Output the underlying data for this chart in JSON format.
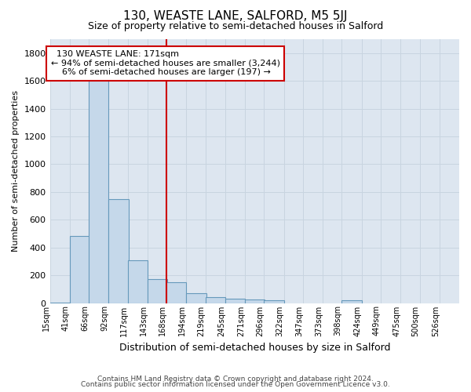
{
  "title": "130, WEASTE LANE, SALFORD, M5 5JJ",
  "subtitle": "Size of property relative to semi-detached houses in Salford",
  "xlabel": "Distribution of semi-detached houses by size in Salford",
  "ylabel": "Number of semi-detached properties",
  "property_label": "130 WEASTE LANE: 171sqm",
  "pct_smaller": 94,
  "count_smaller": 3244,
  "pct_larger": 6,
  "count_larger": 197,
  "bin_labels": [
    "15sqm",
    "41sqm",
    "66sqm",
    "92sqm",
    "117sqm",
    "143sqm",
    "168sqm",
    "194sqm",
    "219sqm",
    "245sqm",
    "271sqm",
    "296sqm",
    "322sqm",
    "347sqm",
    "373sqm",
    "398sqm",
    "424sqm",
    "449sqm",
    "475sqm",
    "500sqm",
    "526sqm"
  ],
  "bin_edges": [
    15,
    41,
    66,
    92,
    117,
    143,
    168,
    194,
    219,
    245,
    271,
    296,
    322,
    347,
    373,
    398,
    424,
    449,
    475,
    500,
    526
  ],
  "bar_heights": [
    5,
    480,
    1650,
    750,
    310,
    170,
    150,
    70,
    45,
    30,
    25,
    20,
    0,
    0,
    0,
    20,
    0,
    0,
    0,
    0,
    0
  ],
  "bar_color": "#c5d8ea",
  "bar_edge_color": "#6699bb",
  "vline_color": "#cc0000",
  "annotation_box_edge_color": "#cc0000",
  "grid_color": "#c8d4e0",
  "background_color": "#dde6f0",
  "ylim": [
    0,
    1900
  ],
  "yticks": [
    0,
    200,
    400,
    600,
    800,
    1000,
    1200,
    1400,
    1600,
    1800
  ],
  "footer_line1": "Contains HM Land Registry data © Crown copyright and database right 2024.",
  "footer_line2": "Contains public sector information licensed under the Open Government Licence v3.0."
}
